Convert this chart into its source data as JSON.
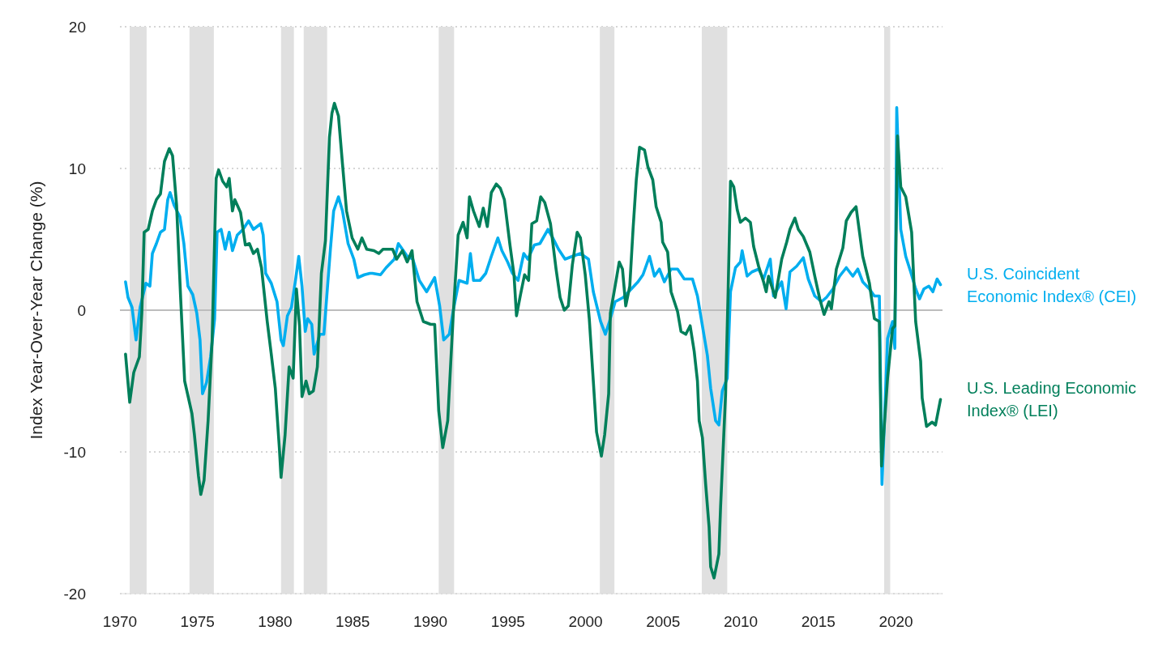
{
  "chart_data": {
    "type": "line",
    "ylabel": "Index Year-Over-Year Change (%)",
    "xlim": [
      1970,
      2023
    ],
    "xticks": [
      1970,
      1975,
      1980,
      1985,
      1990,
      1995,
      2000,
      2005,
      2010,
      2015,
      2020
    ],
    "ylim": [
      -20,
      20
    ],
    "yticks": [
      -20,
      -10,
      0,
      10,
      20
    ],
    "grid": "y",
    "legend": "right",
    "ref_lines": [
      {
        "axis": "y",
        "value": 0,
        "color": "#bdbdbd"
      }
    ],
    "bands": [
      {
        "axis": "x",
        "from": 1970.63,
        "to": 1971.72,
        "color": "#e0e0e0"
      },
      {
        "axis": "x",
        "from": 1974.48,
        "to": 1976.05,
        "color": "#e0e0e0"
      },
      {
        "axis": "x",
        "from": 1980.38,
        "to": 1981.21,
        "color": "#e0e0e0"
      },
      {
        "axis": "x",
        "from": 1981.84,
        "to": 1983.35,
        "color": "#e0e0e0"
      },
      {
        "axis": "x",
        "from": 1990.54,
        "to": 1991.53,
        "color": "#e0e0e0"
      },
      {
        "axis": "x",
        "from": 2000.92,
        "to": 2001.86,
        "color": "#e0e0e0"
      },
      {
        "axis": "x",
        "from": 2007.49,
        "to": 2009.13,
        "color": "#e0e0e0"
      },
      {
        "axis": "x",
        "from": 2019.24,
        "to": 2019.63,
        "color": "#e0e0e0"
      }
    ],
    "series": [
      {
        "name": "U.S. Coincident Economic Index® (CEI)",
        "color": "#00aeef",
        "x": [
          1970.36,
          1970.52,
          1970.78,
          1971.04,
          1971.3,
          1971.67,
          1971.93,
          1972.09,
          1972.35,
          1972.61,
          1972.87,
          1973.08,
          1973.23,
          1973.49,
          1973.86,
          1974.12,
          1974.38,
          1974.69,
          1974.95,
          1975.16,
          1975.32,
          1975.58,
          1975.84,
          1976.1,
          1976.26,
          1976.52,
          1976.78,
          1977.04,
          1977.25,
          1977.56,
          1977.93,
          1978.29,
          1978.6,
          1979.07,
          1979.23,
          1979.39,
          1979.75,
          1980.12,
          1980.38,
          1980.53,
          1980.79,
          1981.05,
          1981.31,
          1981.52,
          1981.73,
          1981.94,
          1982.1,
          1982.36,
          1982.51,
          1982.88,
          1983.14,
          1983.3,
          1983.56,
          1983.77,
          1984.08,
          1984.34,
          1984.7,
          1985.07,
          1985.33,
          1985.75,
          1986.11,
          1986.27,
          1986.79,
          1987.15,
          1987.68,
          1987.94,
          1988.2,
          1988.51,
          1988.87,
          1989.29,
          1989.76,
          1990.28,
          1990.6,
          1990.86,
          1991.22,
          1991.48,
          1991.85,
          1992.37,
          1992.58,
          1992.78,
          1993.2,
          1993.57,
          1993.93,
          1994.35,
          1994.61,
          1994.98,
          1995.29,
          1995.65,
          1996.02,
          1996.28,
          1996.7,
          1997.06,
          1997.58,
          1997.89,
          1998.26,
          1998.68,
          1999.15,
          1999.67,
          2000.19,
          2000.5,
          2000.97,
          2001.28,
          2001.54,
          2001.91,
          2002.43,
          2002.95,
          2003.38,
          2003.7,
          2004.12,
          2004.44,
          2004.76,
          2005.08,
          2005.51,
          2005.93,
          2006.36,
          2006.89,
          2007.21,
          2007.53,
          2007.85,
          2008.06,
          2008.38,
          2008.59,
          2008.81,
          2009.13,
          2009.34,
          2009.66,
          2009.98,
          2010.09,
          2010.41,
          2010.72,
          2011.15,
          2011.47,
          2011.9,
          2012.11,
          2012.64,
          2012.92,
          2013.17,
          2013.6,
          2014.03,
          2014.35,
          2014.77,
          2015.2,
          2015.52,
          2015.94,
          2016.37,
          2016.8,
          2017.22,
          2017.54,
          2017.86,
          2018.29,
          2018.61,
          2018.93,
          2019.1,
          2019.46,
          2019.78,
          2019.93,
          2020.05,
          2020.31,
          2020.63,
          2020.95,
          2021.27,
          2021.52,
          2021.8,
          2022.12,
          2022.38,
          2022.65,
          2022.87
        ],
        "values": [
          2.0,
          0.9,
          0.2,
          -2.1,
          0.2,
          1.9,
          1.7,
          4.0,
          4.7,
          5.5,
          5.7,
          7.8,
          8.3,
          7.4,
          6.6,
          4.7,
          1.7,
          1.1,
          -0.2,
          -2.1,
          -5.9,
          -5.1,
          -3.3,
          -0.6,
          5.5,
          5.7,
          4.3,
          5.5,
          4.2,
          5.3,
          5.7,
          6.3,
          5.7,
          6.1,
          5.3,
          2.6,
          1.9,
          0.6,
          -2.1,
          -2.5,
          -0.4,
          0.2,
          2.1,
          3.8,
          1.7,
          -1.5,
          -0.6,
          -1.0,
          -3.1,
          -1.7,
          -1.7,
          0.6,
          4.3,
          7.0,
          8.0,
          7.0,
          4.7,
          3.6,
          2.3,
          2.5,
          2.6,
          2.6,
          2.5,
          3.0,
          3.6,
          4.7,
          4.3,
          3.8,
          3.6,
          2.1,
          1.3,
          2.3,
          0.3,
          -2.1,
          -1.7,
          0,
          2.1,
          1.9,
          4.0,
          2.1,
          2.1,
          2.6,
          3.8,
          5.1,
          4.2,
          3.4,
          2.6,
          2.1,
          4.0,
          3.6,
          4.6,
          4.7,
          5.7,
          5.1,
          4.3,
          3.6,
          3.8,
          4.0,
          3.6,
          1.3,
          -0.8,
          -1.7,
          -0.8,
          0.6,
          0.9,
          1.5,
          2.0,
          2.5,
          3.8,
          2.4,
          2.9,
          2.0,
          2.9,
          2.9,
          2.2,
          2.2,
          1.0,
          -1.1,
          -3.2,
          -5.5,
          -7.8,
          -8.1,
          -5.7,
          -4.8,
          1.3,
          3.0,
          3.4,
          4.2,
          2.4,
          2.7,
          2.9,
          2.2,
          3.6,
          1.0,
          2.0,
          0.1,
          2.7,
          3.1,
          3.7,
          2.2,
          1.0,
          0.6,
          0.9,
          1.5,
          2.4,
          3.0,
          2.4,
          2.9,
          2.0,
          1.5,
          1.0,
          1.0,
          -12.3,
          -2.0,
          -0.8,
          -2.7,
          14.3,
          5.7,
          3.8,
          2.7,
          1.5,
          0.8,
          1.5,
          1.7,
          1.3,
          2.2,
          1.8
        ]
      },
      {
        "name": "U.S. Leading Economic Index® (LEI)",
        "color": "#007f5a",
        "x": [
          1970.36,
          1970.63,
          1970.89,
          1971.25,
          1971.41,
          1971.56,
          1971.82,
          1972.09,
          1972.35,
          1972.61,
          1972.87,
          1973.18,
          1973.39,
          1973.65,
          1973.91,
          1974.17,
          1974.64,
          1974.8,
          1975.06,
          1975.21,
          1975.42,
          1975.68,
          1975.94,
          1976.2,
          1976.36,
          1976.62,
          1976.88,
          1977.04,
          1977.25,
          1977.4,
          1977.77,
          1978.08,
          1978.34,
          1978.6,
          1978.86,
          1979.12,
          1979.49,
          1979.75,
          1980.01,
          1980.27,
          1980.38,
          1980.64,
          1980.9,
          1981.16,
          1981.37,
          1981.57,
          1981.73,
          1981.99,
          1982.2,
          1982.46,
          1982.72,
          1982.98,
          1983.24,
          1983.5,
          1983.66,
          1983.82,
          1984.08,
          1984.34,
          1984.6,
          1984.96,
          1985.33,
          1985.59,
          1985.9,
          1986.37,
          1986.68,
          1986.95,
          1987.57,
          1987.83,
          1988.2,
          1988.51,
          1988.82,
          1989.14,
          1989.55,
          1990.02,
          1990.28,
          1990.54,
          1990.8,
          1991.12,
          1991.48,
          1991.79,
          1992.11,
          1992.37,
          1992.52,
          1992.78,
          1993.15,
          1993.41,
          1993.67,
          1993.93,
          1994.25,
          1994.51,
          1994.77,
          1995.13,
          1995.39,
          1995.55,
          1995.81,
          1996.07,
          1996.33,
          1996.54,
          1996.85,
          1997.11,
          1997.37,
          1997.74,
          1998.1,
          1998.36,
          1998.63,
          1998.89,
          1999.15,
          1999.46,
          1999.67,
          1999.98,
          2000.24,
          2000.5,
          2000.71,
          2001.02,
          2001.23,
          2001.49,
          2001.6,
          2001.81,
          2002.17,
          2002.38,
          2002.59,
          2002.85,
          2003.06,
          2003.27,
          2003.48,
          2003.8,
          2004.02,
          2004.33,
          2004.55,
          2004.87,
          2004.97,
          2005.29,
          2005.51,
          2005.93,
          2006.15,
          2006.46,
          2006.74,
          2007.0,
          2007.21,
          2007.32,
          2007.53,
          2007.74,
          2007.96,
          2008.06,
          2008.28,
          2008.59,
          2008.7,
          2009.02,
          2009.19,
          2009.34,
          2009.55,
          2009.77,
          2009.98,
          2010.3,
          2010.62,
          2010.83,
          2011.15,
          2011.47,
          2011.64,
          2011.79,
          2012.22,
          2012.64,
          2012.96,
          2013.17,
          2013.49,
          2013.71,
          2014.03,
          2014.45,
          2014.77,
          2015.09,
          2015.37,
          2015.69,
          2015.84,
          2016.16,
          2016.58,
          2016.8,
          2017.11,
          2017.43,
          2017.86,
          2018.29,
          2018.61,
          2018.93,
          2019.07,
          2019.46,
          2019.78,
          2019.93,
          2020.1,
          2020.31,
          2020.63,
          2021.01,
          2021.27,
          2021.59,
          2021.69,
          2021.97,
          2022.33,
          2022.55,
          2022.87
        ],
        "values": [
          -3.1,
          -6.5,
          -4.4,
          -3.3,
          -0.2,
          5.5,
          5.7,
          7.0,
          7.8,
          8.2,
          10.5,
          11.4,
          10.9,
          7.4,
          0.9,
          -5.0,
          -7.3,
          -8.8,
          -11.7,
          -13.0,
          -12.0,
          -7.8,
          -2.1,
          9.3,
          9.9,
          9.1,
          8.7,
          9.3,
          7.0,
          7.8,
          6.9,
          4.6,
          4.7,
          4.0,
          4.3,
          3.0,
          -0.8,
          -3.1,
          -5.5,
          -9.7,
          -11.8,
          -8.8,
          -4.0,
          -4.8,
          1.5,
          -1.1,
          -6.1,
          -5.0,
          -5.9,
          -5.7,
          -4.0,
          2.6,
          4.9,
          12.2,
          13.9,
          14.6,
          13.7,
          10.3,
          7.0,
          5.1,
          4.3,
          5.1,
          4.3,
          4.2,
          4.0,
          4.3,
          4.3,
          3.6,
          4.2,
          3.4,
          4.2,
          0.6,
          -0.8,
          -1.0,
          -1.0,
          -7.1,
          -9.7,
          -7.8,
          -0.2,
          5.3,
          6.2,
          5.1,
          8.0,
          7.0,
          5.9,
          7.2,
          5.9,
          8.3,
          8.9,
          8.6,
          7.8,
          4.6,
          2.5,
          -0.4,
          1.1,
          2.5,
          2.1,
          6.1,
          6.3,
          8.0,
          7.6,
          6.1,
          2.9,
          0.9,
          0,
          0.3,
          3.2,
          5.5,
          5.1,
          2.5,
          -0.6,
          -5.0,
          -8.6,
          -10.3,
          -8.8,
          -5.9,
          -0.2,
          1.1,
          3.4,
          2.9,
          0.3,
          1.7,
          5.7,
          9.2,
          11.5,
          11.3,
          10.1,
          9.2,
          7.3,
          6.2,
          4.8,
          4.1,
          1.3,
          -0.1,
          -1.5,
          -1.7,
          -1.1,
          -2.9,
          -5.0,
          -7.8,
          -9.0,
          -12.3,
          -15.3,
          -18.1,
          -18.9,
          -17.2,
          -13.9,
          -6.0,
          1.5,
          9.1,
          8.7,
          7.1,
          6.2,
          6.5,
          6.2,
          4.5,
          3.1,
          2.0,
          1.3,
          2.4,
          0.9,
          3.6,
          4.8,
          5.7,
          6.5,
          5.7,
          5.2,
          4.1,
          2.4,
          0.8,
          -0.3,
          0.6,
          0.1,
          2.9,
          4.4,
          6.3,
          6.9,
          7.3,
          3.8,
          1.9,
          -0.6,
          -0.8,
          -11.0,
          -4.8,
          -1.3,
          -1.1,
          12.3,
          8.7,
          8.0,
          5.5,
          -0.8,
          -3.6,
          -6.2,
          -8.2,
          -7.9,
          -8.1,
          -6.3
        ]
      }
    ]
  }
}
